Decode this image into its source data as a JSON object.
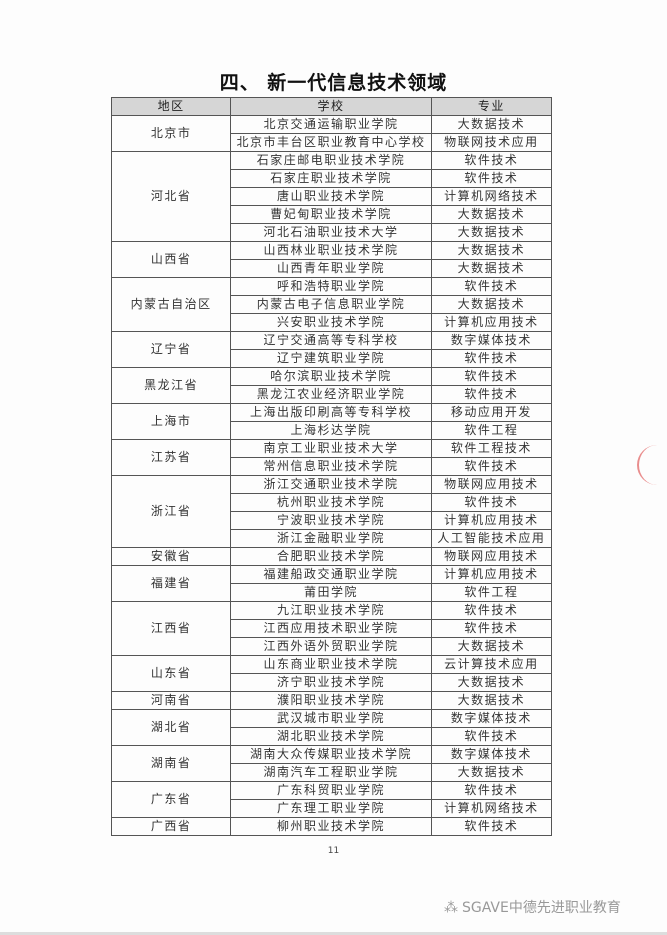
{
  "title": "四、 新一代信息技术领域",
  "headers": [
    "地区",
    "学校",
    "专业"
  ],
  "groups": [
    {
      "region": "北京市",
      "rows": [
        [
          "北京交通运输职业学院",
          "大数据技术"
        ],
        [
          "北京市丰台区职业教育中心学校",
          "物联网技术应用"
        ]
      ]
    },
    {
      "region": "河北省",
      "rows": [
        [
          "石家庄邮电职业技术学院",
          "软件技术"
        ],
        [
          "石家庄职业技术学院",
          "软件技术"
        ],
        [
          "唐山职业技术学院",
          "计算机网络技术"
        ],
        [
          "曹妃甸职业技术学院",
          "大数据技术"
        ],
        [
          "河北石油职业技术大学",
          "大数据技术"
        ]
      ]
    },
    {
      "region": "山西省",
      "rows": [
        [
          "山西林业职业技术学院",
          "大数据技术"
        ],
        [
          "山西青年职业学院",
          "大数据技术"
        ]
      ]
    },
    {
      "region": "内蒙古自治区",
      "rows": [
        [
          "呼和浩特职业学院",
          "软件技术"
        ],
        [
          "内蒙古电子信息职业学院",
          "大数据技术"
        ],
        [
          "兴安职业技术学院",
          "计算机应用技术"
        ]
      ]
    },
    {
      "region": "辽宁省",
      "rows": [
        [
          "辽宁交通高等专科学校",
          "数字媒体技术"
        ],
        [
          "辽宁建筑职业学院",
          "软件技术"
        ]
      ]
    },
    {
      "region": "黑龙江省",
      "rows": [
        [
          "哈尔滨职业技术学院",
          "软件技术"
        ],
        [
          "黑龙江农业经济职业学院",
          "软件技术"
        ]
      ]
    },
    {
      "region": "上海市",
      "rows": [
        [
          "上海出版印刷高等专科学校",
          "移动应用开发"
        ],
        [
          "上海杉达学院",
          "软件工程"
        ]
      ]
    },
    {
      "region": "江苏省",
      "rows": [
        [
          "南京工业职业技术大学",
          "软件工程技术"
        ],
        [
          "常州信息职业技术学院",
          "软件技术"
        ]
      ]
    },
    {
      "region": "浙江省",
      "rows": [
        [
          "浙江交通职业技术学院",
          "物联网应用技术"
        ],
        [
          "杭州职业技术学院",
          "软件技术"
        ],
        [
          "宁波职业技术学院",
          "计算机应用技术"
        ],
        [
          "浙江金融职业学院",
          "人工智能技术应用"
        ]
      ]
    },
    {
      "region": "安徽省",
      "rows": [
        [
          "合肥职业技术学院",
          "物联网应用技术"
        ]
      ]
    },
    {
      "region": "福建省",
      "rows": [
        [
          "福建船政交通职业学院",
          "计算机应用技术"
        ],
        [
          "莆田学院",
          "软件工程"
        ]
      ]
    },
    {
      "region": "江西省",
      "rows": [
        [
          "九江职业技术学院",
          "软件技术"
        ],
        [
          "江西应用技术职业学院",
          "软件技术"
        ],
        [
          "江西外语外贸职业学院",
          "大数据技术"
        ]
      ]
    },
    {
      "region": "山东省",
      "rows": [
        [
          "山东商业职业技术学院",
          "云计算技术应用"
        ],
        [
          "济宁职业技术学院",
          "大数据技术"
        ]
      ]
    },
    {
      "region": "河南省",
      "rows": [
        [
          "濮阳职业技术学院",
          "大数据技术"
        ]
      ]
    },
    {
      "region": "湖北省",
      "rows": [
        [
          "武汉城市职业学院",
          "数字媒体技术"
        ],
        [
          "湖北职业技术学院",
          "软件技术"
        ]
      ]
    },
    {
      "region": "湖南省",
      "rows": [
        [
          "湖南大众传媒职业技术学院",
          "数字媒体技术"
        ],
        [
          "湖南汽车工程职业学院",
          "大数据技术"
        ]
      ]
    },
    {
      "region": "广东省",
      "rows": [
        [
          "广东科贸职业学院",
          "软件技术"
        ],
        [
          "广东理工职业学院",
          "计算机网络技术"
        ]
      ]
    },
    {
      "region": "广西省",
      "rows": [
        [
          "柳州职业技术学院",
          "软件技术"
        ]
      ]
    }
  ],
  "page_number": "11",
  "watermark": "SGAVE中德先进职业教育"
}
